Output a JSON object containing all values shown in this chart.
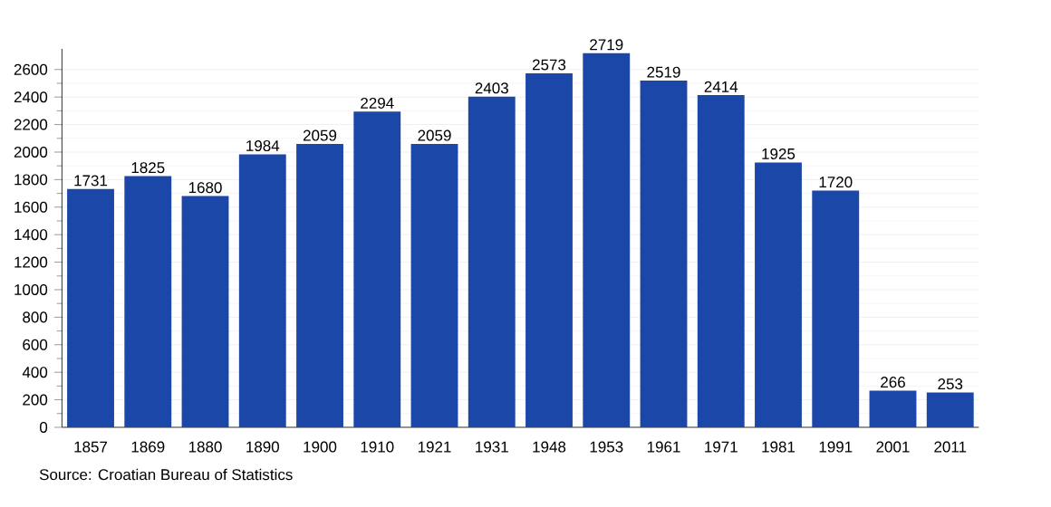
{
  "chart_data": {
    "type": "bar",
    "categories": [
      "1857",
      "1869",
      "1880",
      "1890",
      "1900",
      "1910",
      "1921",
      "1931",
      "1948",
      "1953",
      "1961",
      "1971",
      "1981",
      "1991",
      "2001",
      "2011"
    ],
    "values": [
      1731,
      1825,
      1680,
      1984,
      2059,
      2294,
      2059,
      2403,
      2573,
      2719,
      2519,
      2414,
      1925,
      1720,
      266,
      253
    ],
    "color": "#1a47a8",
    "ylim": [
      0,
      2750
    ],
    "yticks": [
      0,
      200,
      400,
      600,
      800,
      1000,
      1200,
      1400,
      1600,
      1800,
      2000,
      2200,
      2400,
      2600
    ],
    "grid": "y",
    "data_labels": true,
    "annotations": [
      "Source: Croatian Bureau of Statistics"
    ]
  }
}
